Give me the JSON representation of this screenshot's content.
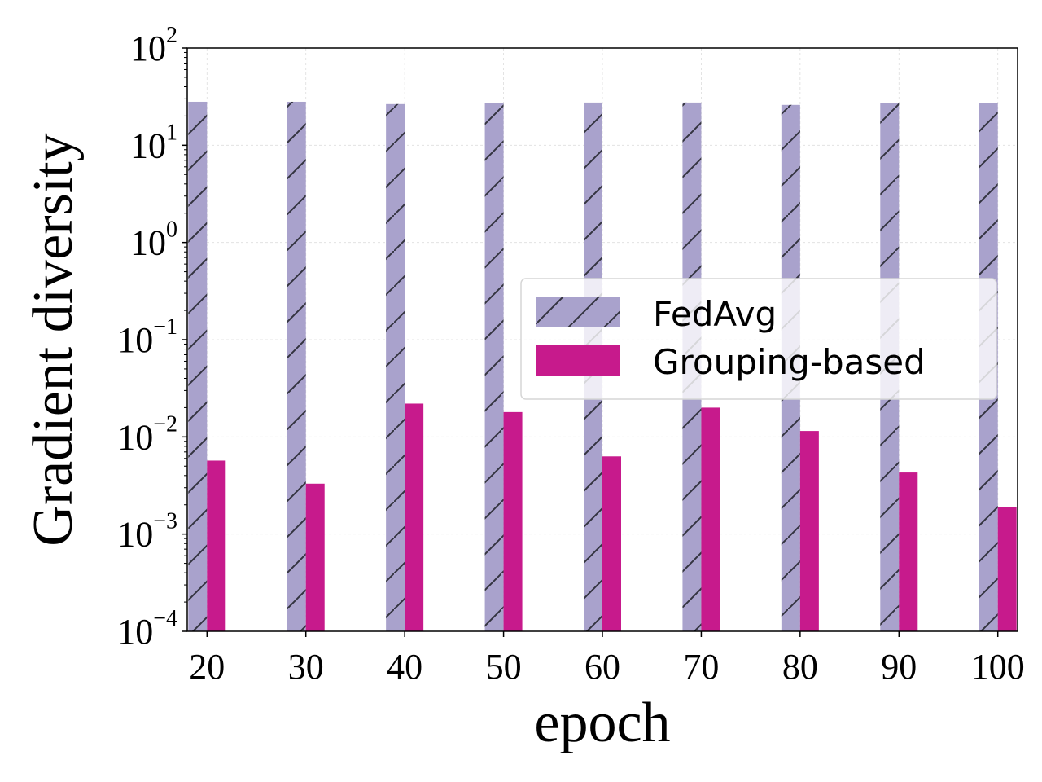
{
  "chart_data": {
    "type": "bar",
    "title": "",
    "xlabel": "epoch",
    "ylabel": "Gradient diversity",
    "yscale": "log",
    "ylim": [
      0.0001,
      100
    ],
    "yticks": [
      {
        "value": 0.0001,
        "base": "10",
        "exp": "−4"
      },
      {
        "value": 0.001,
        "base": "10",
        "exp": "−3"
      },
      {
        "value": 0.01,
        "base": "10",
        "exp": "−2"
      },
      {
        "value": 0.1,
        "base": "10",
        "exp": "−1"
      },
      {
        "value": 1,
        "base": "10",
        "exp": "0"
      },
      {
        "value": 10,
        "base": "10",
        "exp": "1"
      },
      {
        "value": 100,
        "base": "10",
        "exp": "2"
      }
    ],
    "categories": [
      "20",
      "30",
      "40",
      "50",
      "60",
      "70",
      "80",
      "90",
      "100"
    ],
    "series": [
      {
        "name": "FedAvg",
        "color": "#a9a2cc",
        "hatch": "/",
        "values": [
          28.0,
          28.0,
          26.5,
          27.0,
          27.5,
          27.5,
          26.0,
          27.0,
          27.0
        ]
      },
      {
        "name": "Grouping-based",
        "color": "#c71a8c",
        "hatch": "",
        "values": [
          0.0057,
          0.0033,
          0.022,
          0.018,
          0.0063,
          0.02,
          0.0115,
          0.0043,
          0.0019
        ]
      }
    ],
    "grid": true,
    "legend_position": "center-right"
  }
}
